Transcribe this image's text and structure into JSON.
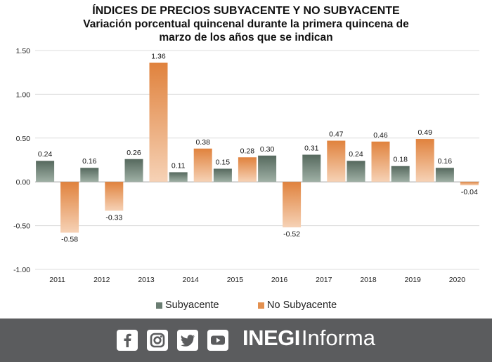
{
  "chart_data": {
    "type": "bar",
    "title": "ÍNDICES DE PRECIOS SUBYACENTE Y NO SUBYACENTE",
    "subtitle_line1": "Variación porcentual quincenal durante la primera quincena de",
    "subtitle_line2": "marzo de los años que se indican",
    "categories": [
      "2011",
      "2012",
      "2013",
      "2014",
      "2015",
      "2016",
      "2017",
      "2018",
      "2019",
      "2020"
    ],
    "series": [
      {
        "name": "Subyacente",
        "values": [
          0.24,
          0.16,
          0.26,
          0.11,
          0.15,
          0.3,
          0.31,
          0.24,
          0.18,
          0.16
        ],
        "labels": [
          "0.24",
          "0.16",
          "0.26",
          "0.11",
          "0.15",
          "0.30",
          "0.31",
          "0.24",
          "0.18",
          "0.16"
        ],
        "color": "#6a7d72"
      },
      {
        "name": "No Subyacente",
        "values": [
          -0.58,
          -0.33,
          1.36,
          0.38,
          0.28,
          -0.52,
          0.47,
          0.46,
          0.49,
          -0.04
        ],
        "labels": [
          "-0.58",
          "-0.33",
          "1.36",
          "0.38",
          "0.28",
          "-0.52",
          "0.47",
          "0.46",
          "0.49",
          "-0.04"
        ],
        "color": "#e3904f"
      }
    ],
    "yticks": [
      "1.50",
      "1.00",
      "0.50",
      "0.00",
      "-0.50",
      "-1.00"
    ],
    "ytick_values": [
      1.5,
      1.0,
      0.5,
      0.0,
      -0.5,
      -1.0
    ],
    "ylim": [
      -1.0,
      1.5
    ],
    "xlabel": "",
    "ylabel": "",
    "grid": true,
    "legend": "bottom"
  },
  "footer": {
    "social": [
      "facebook-icon",
      "instagram-icon",
      "twitter-icon",
      "youtube-icon"
    ],
    "brand_bold": "INEGI",
    "brand_light": "Informa"
  }
}
